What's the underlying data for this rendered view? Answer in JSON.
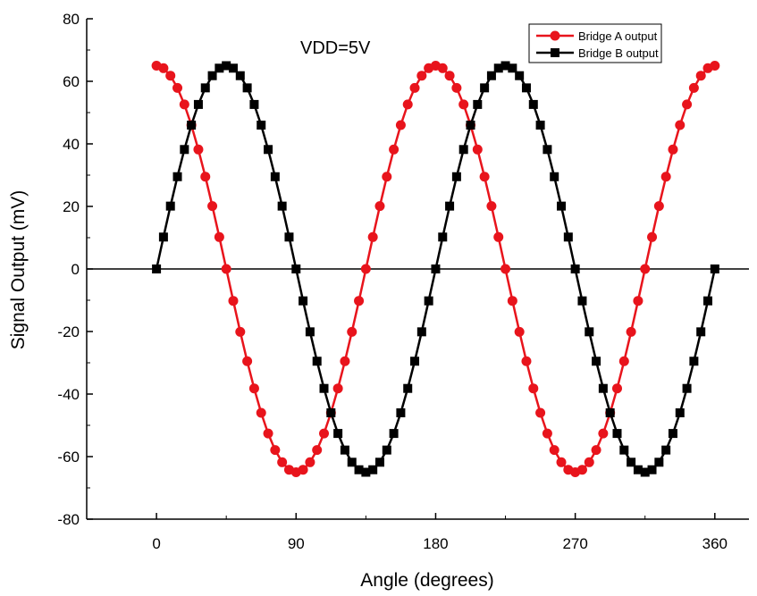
{
  "chart_data": {
    "type": "line",
    "title": "",
    "xlabel": "Angle (degrees)",
    "ylabel": "Signal Output (mV)",
    "xlim": [
      -45,
      382
    ],
    "ylim": [
      -80,
      80
    ],
    "xticks": [
      0,
      90,
      180,
      270,
      360
    ],
    "yticks": [
      -80,
      -60,
      -40,
      -20,
      0,
      20,
      40,
      60,
      80
    ],
    "grid": false,
    "zero_line": true,
    "legend_position": "top-right",
    "annotation": "VDD=5V",
    "x": [
      0,
      4.5,
      9,
      13.5,
      18,
      22.5,
      27,
      31.5,
      36,
      40.5,
      45,
      49.5,
      54,
      58.5,
      63,
      67.5,
      72,
      76.5,
      81,
      85.5,
      90,
      94.5,
      99,
      103.5,
      108,
      112.5,
      117,
      121.5,
      126,
      130.5,
      135,
      139.5,
      144,
      148.5,
      153,
      157.5,
      162,
      166.5,
      171,
      175.5,
      180,
      184.5,
      189,
      193.5,
      198,
      202.5,
      207,
      211.5,
      216,
      220.5,
      225,
      229.5,
      234,
      238.5,
      243,
      247.5,
      252,
      256.5,
      261,
      265.5,
      270,
      274.5,
      279,
      283.5,
      288,
      292.5,
      297,
      301.5,
      306,
      310.5,
      315,
      319.5,
      324,
      328.5,
      333,
      337.5,
      342,
      346.5,
      351,
      355.5,
      360
    ],
    "series": [
      {
        "name": "Bridge A output",
        "color": "#e8141c",
        "marker": "circle",
        "values": [
          65,
          64.2,
          61.8,
          57.9,
          52.6,
          46,
          38.2,
          29.5,
          20.1,
          10.2,
          0,
          -10.2,
          -20.1,
          -29.5,
          -38.2,
          -46,
          -52.6,
          -57.9,
          -61.8,
          -64.2,
          -65,
          -64.2,
          -61.8,
          -57.9,
          -52.6,
          -46,
          -38.2,
          -29.5,
          -20.1,
          -10.2,
          0,
          10.2,
          20.1,
          29.5,
          38.2,
          46,
          52.6,
          57.9,
          61.8,
          64.2,
          65,
          64.2,
          61.8,
          57.9,
          52.6,
          46,
          38.2,
          29.5,
          20.1,
          10.2,
          0,
          -10.2,
          -20.1,
          -29.5,
          -38.2,
          -46,
          -52.6,
          -57.9,
          -61.8,
          -64.2,
          -65,
          -64.2,
          -61.8,
          -57.9,
          -52.6,
          -46,
          -38.2,
          -29.5,
          -20.1,
          -10.2,
          0,
          10.2,
          20.1,
          29.5,
          38.2,
          46,
          52.6,
          57.9,
          61.8,
          64.2,
          65
        ]
      },
      {
        "name": "Bridge B output",
        "color": "#000000",
        "marker": "square",
        "values": [
          0,
          10.2,
          20.1,
          29.5,
          38.2,
          46,
          52.6,
          57.9,
          61.8,
          64.2,
          65,
          64.2,
          61.8,
          57.9,
          52.6,
          46,
          38.2,
          29.5,
          20.1,
          10.2,
          0,
          -10.2,
          -20.1,
          -29.5,
          -38.2,
          -46,
          -52.6,
          -57.9,
          -61.8,
          -64.2,
          -65,
          -64.2,
          -61.8,
          -57.9,
          -52.6,
          -46,
          -38.2,
          -29.5,
          -20.1,
          -10.2,
          0,
          10.2,
          20.1,
          29.5,
          38.2,
          46,
          52.6,
          57.9,
          61.8,
          64.2,
          65,
          64.2,
          61.8,
          57.9,
          52.6,
          46,
          38.2,
          29.5,
          20.1,
          10.2,
          0,
          -10.2,
          -20.1,
          -29.5,
          -38.2,
          -46,
          -52.6,
          -57.9,
          -61.8,
          -64.2,
          -65,
          -64.2,
          -61.8,
          -57.9,
          -52.6,
          -46,
          -38.2,
          -29.5,
          -20.1,
          -10.2,
          0
        ]
      }
    ]
  }
}
